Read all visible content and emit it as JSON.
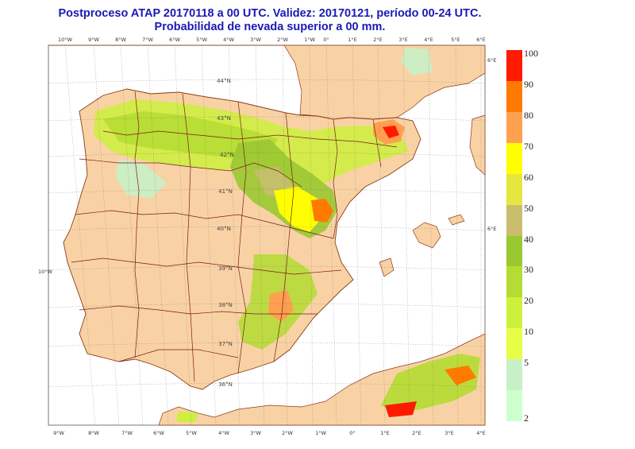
{
  "title": {
    "line1": "Postproceso ATAP 20170118 a 00 UTC. Validez: 20170121, período 00-24 UTC.",
    "line2": "Probabilidad de nevada superior a 00 mm."
  },
  "map": {
    "top_ticks": [
      "10°W",
      "9°W",
      "8°W",
      "7°W",
      "6°W",
      "5°W",
      "4°W",
      "3°W",
      "2°W",
      "1°W",
      "0°",
      "1°E",
      "2°E",
      "3°E",
      "4°E",
      "5°E",
      "6°E"
    ],
    "bottom_ticks": [
      "9°W",
      "8°W",
      "7°W",
      "6°W",
      "5°W",
      "4°W",
      "3°W",
      "2°W",
      "1°W",
      "0°",
      "1°E",
      "2°E",
      "3°E",
      "4°E"
    ],
    "lat_labels": [
      "44°N",
      "43°N",
      "42°N",
      "41°N",
      "40°N",
      "39°N",
      "38°N",
      "37°N",
      "36°N"
    ],
    "left_label": "10°W",
    "right_labels": [
      "6°E",
      "6°E"
    ],
    "colors": {
      "land": "#f8d2a4",
      "sea": "#ffffff",
      "border": "#7a1a1a",
      "coast": "#8b3a1a"
    }
  },
  "legend": {
    "labels": [
      "100",
      "90",
      "80",
      "70",
      "60",
      "50",
      "40",
      "30",
      "20",
      "10",
      "5",
      "2"
    ],
    "colors": [
      "#ff1a00",
      "#ff7a00",
      "#ffa050",
      "#ffff00",
      "#e6e640",
      "#c8be6e",
      "#9ac832",
      "#b4dc32",
      "#cdf03c",
      "#e6ff46",
      "#c8f0c8",
      "#cdffcd"
    ]
  }
}
